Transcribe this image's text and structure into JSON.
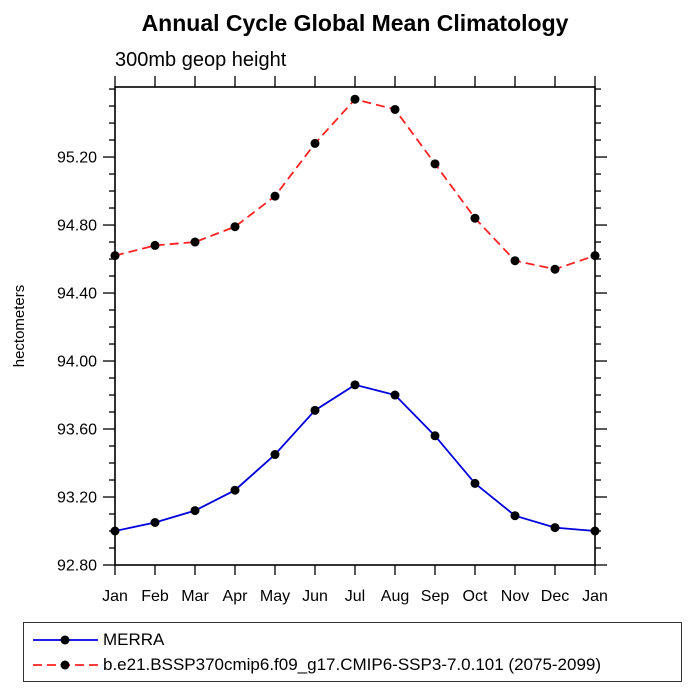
{
  "title": "Annual Cycle Global Mean Climatology",
  "subtitle": "300mb geop height",
  "chart_data": {
    "type": "line",
    "x": [
      "Jan",
      "Feb",
      "Mar",
      "Apr",
      "May",
      "Jun",
      "Jul",
      "Aug",
      "Sep",
      "Oct",
      "Nov",
      "Dec",
      "Jan"
    ],
    "xlabel": "",
    "ylabel": "hectometers",
    "ylim": [
      92.8,
      95.612
    ],
    "yticks": {
      "values": [
        92.8,
        93.2,
        93.6,
        94.0,
        94.4,
        94.8,
        95.2
      ],
      "labels": [
        "92.80",
        "93.20",
        "93.60",
        "94.00",
        "94.40",
        "94.80",
        "95.20"
      ],
      "minor_step": 0.1
    },
    "grid": "off",
    "legend_position": "bottom-outside-box",
    "marker": "filled-circle",
    "marker_color": "#000000",
    "series": [
      {
        "name": "MERRA",
        "color": "#0000dd",
        "line_style": "solid",
        "values": [
          93.0,
          93.05,
          93.12,
          93.24,
          93.45,
          93.71,
          93.86,
          93.8,
          93.56,
          93.28,
          93.09,
          93.02,
          93.0
        ]
      },
      {
        "name": "b.e21.BSSP370cmip6.f09_g17.CMIP6-SSP3-7.0.101 (2075-2099)",
        "color": "#ff2222",
        "line_style": "dashed",
        "values": [
          94.62,
          94.68,
          94.7,
          94.79,
          94.97,
          95.28,
          95.54,
          95.48,
          95.16,
          94.84,
          94.59,
          94.54,
          94.62
        ]
      }
    ]
  }
}
